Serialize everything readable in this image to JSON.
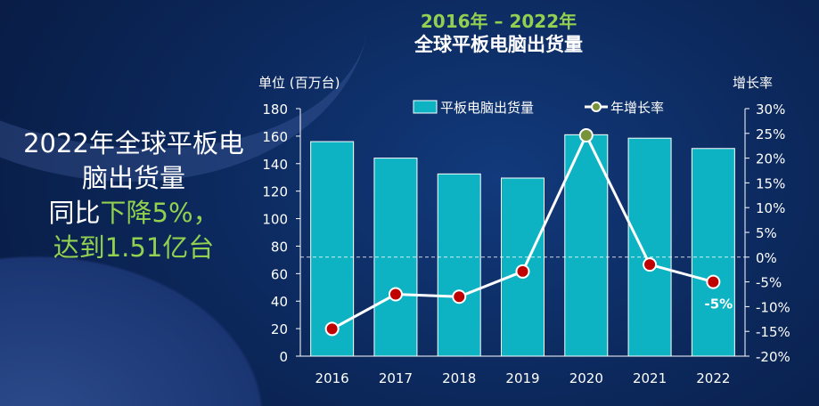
{
  "headline": {
    "line1": "2022年全球平板电",
    "line2": "脑出货量",
    "line3_white": "同比",
    "line3_green": "下降5%，",
    "line4": "达到1.51亿台"
  },
  "chart_data": {
    "type": "bar",
    "title": "2016年 – 2022年",
    "subtitle": "全球平板电脑出货量",
    "ylabel": "单位 (百万台)",
    "y2label": "增长率",
    "categories": [
      "2016",
      "2017",
      "2018",
      "2019",
      "2020",
      "2021",
      "2022"
    ],
    "ylim": [
      0,
      180
    ],
    "yticks": [
      "0",
      "20",
      "40",
      "60",
      "80",
      "100",
      "120",
      "140",
      "160",
      "180"
    ],
    "y2lim": [
      -20,
      30
    ],
    "y2ticks": [
      "-20%",
      "-15%",
      "-10%",
      "-5%",
      "0%",
      "5%",
      "10%",
      "15%",
      "20%",
      "25%",
      "30%"
    ],
    "series": [
      {
        "name": "平板电脑出货量",
        "type": "bar",
        "axis": "left",
        "color": "#0db3c2",
        "values": [
          156,
          144,
          132.5,
          129.5,
          161,
          158.5,
          151
        ]
      },
      {
        "name": "年增长率",
        "type": "line",
        "axis": "right",
        "color": "#ffffff",
        "marker_color": "#c00000",
        "highlight_color": "#77933c",
        "values": [
          -14.5,
          -7.5,
          -8,
          -2.9,
          24.6,
          -1.5,
          -5
        ]
      }
    ],
    "annotations": [
      {
        "category": "2022",
        "text": "-5%"
      }
    ],
    "legend": "top-center"
  }
}
